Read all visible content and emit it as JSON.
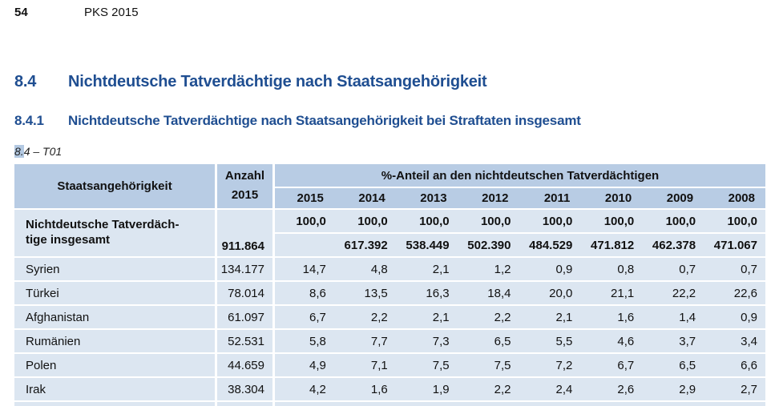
{
  "page_header": {
    "page_number": "54",
    "report_title": "PKS 2015"
  },
  "headings": {
    "section": {
      "number": "8.4",
      "title": "Nichtdeutsche Tatverdächtige nach Staatsangehörigkeit"
    },
    "subsection": {
      "number": "8.4.1",
      "title": "Nichtdeutsche Tatverdächtige nach Staatsangehörigkeit bei Straftaten insgesamt"
    },
    "table_label": {
      "highlighted": "8.",
      "rest": "4 – T01"
    }
  },
  "table": {
    "col_nationality": "Staatsangehörigkeit",
    "col_anzahl_line1": "Anzahl",
    "col_anzahl_line2": "2015",
    "col_share": "%-Anteil an den nichtdeutschen Tatverdächtigen",
    "years": [
      "2015",
      "2014",
      "2013",
      "2012",
      "2011",
      "2010",
      "2009",
      "2008"
    ],
    "total_row": {
      "label_line1": "Nichtdeutsche Tatverdäch-",
      "label_line2": "tige insgesamt",
      "anzahl": "911.864",
      "percent": [
        "100,0",
        "100,0",
        "100,0",
        "100,0",
        "100,0",
        "100,0",
        "100,0",
        "100,0"
      ],
      "absolute": [
        "",
        "617.392",
        "538.449",
        "502.390",
        "484.529",
        "471.812",
        "462.378",
        "471.067"
      ]
    },
    "rows": [
      {
        "name": "Syrien",
        "anzahl": "134.177",
        "values": [
          "14,7",
          "4,8",
          "2,1",
          "1,2",
          "0,9",
          "0,8",
          "0,7",
          "0,7"
        ]
      },
      {
        "name": "Türkei",
        "anzahl": "78.014",
        "values": [
          "8,6",
          "13,5",
          "16,3",
          "18,4",
          "20,0",
          "21,1",
          "22,2",
          "22,6"
        ]
      },
      {
        "name": "Afghanistan",
        "anzahl": "61.097",
        "values": [
          "6,7",
          "2,2",
          "2,1",
          "2,2",
          "2,1",
          "1,6",
          "1,4",
          "0,9"
        ]
      },
      {
        "name": "Rumänien",
        "anzahl": "52.531",
        "values": [
          "5,8",
          "7,7",
          "7,3",
          "6,5",
          "5,5",
          "4,6",
          "3,7",
          "3,4"
        ]
      },
      {
        "name": "Polen",
        "anzahl": "44.659",
        "values": [
          "4,9",
          "7,1",
          "7,5",
          "7,5",
          "7,2",
          "6,7",
          "6,5",
          "6,6"
        ]
      },
      {
        "name": "Irak",
        "anzahl": "38.304",
        "values": [
          "4,2",
          "1,6",
          "1,9",
          "2,2",
          "2,4",
          "2,6",
          "2,9",
          "2,7"
        ]
      }
    ]
  },
  "colors": {
    "header_bg": "#b8cce4",
    "row_bg": "#dce6f1",
    "heading_blue": "#1f4e91",
    "highlight": "#b3c9e2"
  }
}
